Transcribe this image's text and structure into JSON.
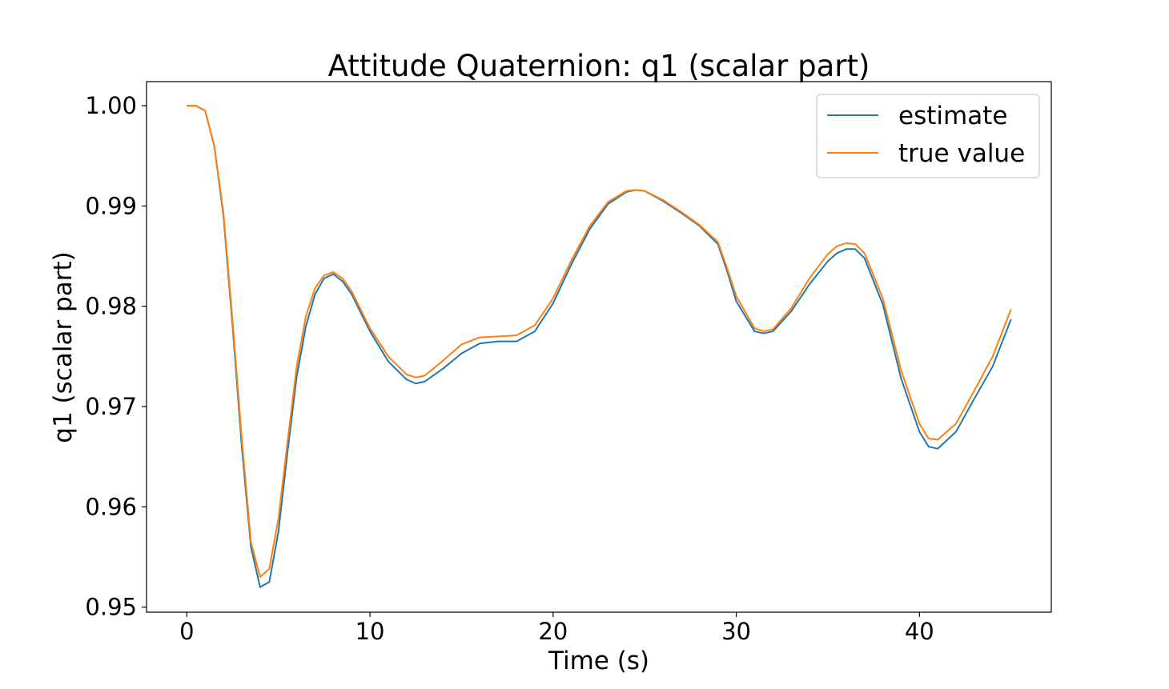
{
  "chart_data": {
    "type": "line",
    "title": "Attitude Quaternion: q1 (scalar part)",
    "xlabel": "Time (s)",
    "ylabel": "q1 (scalar part)",
    "xlim": [
      -2.2,
      47.2
    ],
    "ylim": [
      0.9495,
      1.0024
    ],
    "xticks": [
      0,
      10,
      20,
      30,
      40
    ],
    "xtick_labels": [
      "0",
      "10",
      "20",
      "30",
      "40"
    ],
    "yticks": [
      0.95,
      0.96,
      0.97,
      0.98,
      0.99,
      1.0
    ],
    "ytick_labels": [
      "0.95",
      "0.96",
      "0.97",
      "0.98",
      "0.99",
      "1.00"
    ],
    "grid": false,
    "legend": {
      "position": "top-right"
    },
    "series": [
      {
        "name": "estimate",
        "color": "#1f77b4",
        "x": [
          0,
          0.5,
          1,
          1.5,
          2,
          2.5,
          3,
          3.5,
          4,
          4.5,
          5,
          5.5,
          6,
          6.5,
          7,
          7.5,
          8,
          8.5,
          9,
          10,
          11,
          12,
          12.5,
          13,
          14,
          15,
          16,
          17,
          18,
          19,
          20,
          21,
          22,
          23,
          24,
          24.5,
          25,
          26,
          27,
          28,
          29,
          29.5,
          30,
          31,
          31.5,
          32,
          33,
          34,
          35,
          35.5,
          36,
          36.5,
          37,
          38,
          39,
          40,
          40.5,
          41,
          42,
          43,
          44,
          45
        ],
        "y": [
          1.0,
          1.0,
          0.9995,
          0.996,
          0.989,
          0.978,
          0.966,
          0.956,
          0.952,
          0.9525,
          0.9575,
          0.9655,
          0.973,
          0.978,
          0.9812,
          0.9828,
          0.9832,
          0.9825,
          0.9812,
          0.9775,
          0.9745,
          0.9727,
          0.9723,
          0.9725,
          0.9738,
          0.9753,
          0.9763,
          0.9765,
          0.9765,
          0.9775,
          0.9803,
          0.9842,
          0.9877,
          0.9902,
          0.9914,
          0.9916,
          0.9915,
          0.9905,
          0.9893,
          0.988,
          0.9862,
          0.9835,
          0.9805,
          0.9775,
          0.9773,
          0.9775,
          0.9795,
          0.9822,
          0.9845,
          0.9853,
          0.9857,
          0.9857,
          0.9848,
          0.9802,
          0.9728,
          0.9675,
          0.966,
          0.9658,
          0.9675,
          0.9708,
          0.974,
          0.9787
        ]
      },
      {
        "name": "true value",
        "color": "#ff7f0e",
        "x": [
          0,
          0.5,
          1,
          1.5,
          2,
          2.5,
          3,
          3.5,
          4,
          4.5,
          5,
          5.5,
          6,
          6.5,
          7,
          7.5,
          8,
          8.5,
          9,
          10,
          11,
          12,
          12.5,
          13,
          14,
          15,
          16,
          17,
          18,
          19,
          20,
          21,
          22,
          23,
          24,
          24.5,
          25,
          26,
          27,
          28,
          29,
          29.5,
          30,
          31,
          31.5,
          32,
          33,
          34,
          35,
          35.5,
          36,
          36.5,
          37,
          38,
          39,
          40,
          40.5,
          41,
          42,
          43,
          44,
          45
        ],
        "y": [
          1.0,
          1.0,
          0.9995,
          0.996,
          0.9893,
          0.9785,
          0.9668,
          0.9565,
          0.953,
          0.9538,
          0.9588,
          0.9665,
          0.974,
          0.979,
          0.9818,
          0.9831,
          0.9834,
          0.9828,
          0.9815,
          0.9778,
          0.975,
          0.9732,
          0.9729,
          0.9731,
          0.9746,
          0.9762,
          0.9769,
          0.977,
          0.9771,
          0.9781,
          0.9808,
          0.9846,
          0.988,
          0.9904,
          0.9915,
          0.9916,
          0.9915,
          0.9906,
          0.9894,
          0.9881,
          0.9864,
          0.9838,
          0.981,
          0.9778,
          0.9775,
          0.9777,
          0.9798,
          0.9828,
          0.9852,
          0.986,
          0.9863,
          0.9862,
          0.9853,
          0.9808,
          0.9736,
          0.9683,
          0.9668,
          0.9667,
          0.9683,
          0.9716,
          0.975,
          0.9797
        ]
      }
    ]
  }
}
